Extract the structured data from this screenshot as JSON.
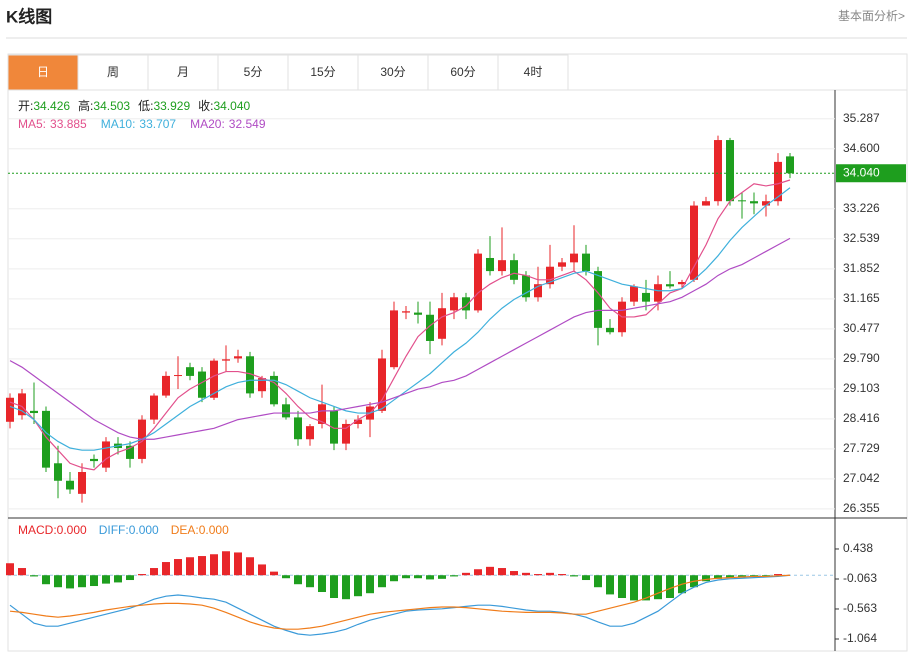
{
  "header": {
    "title": "K线图",
    "link": "基本面分析>"
  },
  "tabs": [
    "日",
    "周",
    "月",
    "5分",
    "15分",
    "30分",
    "60分",
    "4时"
  ],
  "active_tab": 0,
  "chart_data": [
    {
      "type": "candlestick",
      "up_color": "#e8262a",
      "down_color": "#1e9e1e",
      "ylim": [
        26.17,
        35.9
      ],
      "yticks": [
        35.287,
        {
          "value": 34.6,
          "label": "34.600"
        },
        33.226,
        32.539,
        31.852,
        31.165,
        30.477,
        {
          "value": 29.79,
          "label": "29.790"
        },
        29.103,
        28.416,
        27.729,
        27.042,
        26.355
      ],
      "grid": true,
      "last_price": {
        "value": 34.04,
        "label": "34.040"
      },
      "ohlc_readout": [
        {
          "name": "开:",
          "value": 34.426
        },
        {
          "name": "高:",
          "value": 34.503
        },
        {
          "name": "低:",
          "value": 33.929
        },
        {
          "name": "收:",
          "value": 34.04,
          "label": "34.040"
        }
      ],
      "candles": [
        [
          28.35,
          29.0,
          28.2,
          28.9
        ],
        [
          28.5,
          29.1,
          28.4,
          29.0
        ],
        [
          28.6,
          29.25,
          28.3,
          28.55
        ],
        [
          28.6,
          28.7,
          27.2,
          27.3
        ],
        [
          27.4,
          27.8,
          26.6,
          27.0
        ],
        [
          27.0,
          27.2,
          26.7,
          26.8
        ],
        [
          26.7,
          27.4,
          26.5,
          27.2
        ],
        [
          27.5,
          27.6,
          27.3,
          27.45
        ],
        [
          27.3,
          28.0,
          27.2,
          27.9
        ],
        [
          27.85,
          28.0,
          27.6,
          27.75
        ],
        [
          27.8,
          27.9,
          27.3,
          27.5
        ],
        [
          27.5,
          28.5,
          27.4,
          28.4
        ],
        [
          28.4,
          29.0,
          28.3,
          28.95
        ],
        [
          28.95,
          29.5,
          28.9,
          29.4
        ],
        [
          29.4,
          29.85,
          29.1,
          29.42
        ],
        [
          29.6,
          29.7,
          29.3,
          29.4
        ],
        [
          29.5,
          29.6,
          28.8,
          28.9
        ],
        [
          28.9,
          29.8,
          28.85,
          29.75
        ],
        [
          29.75,
          30.1,
          29.5,
          29.78
        ],
        [
          29.8,
          30.0,
          29.7,
          29.85
        ],
        [
          29.85,
          29.95,
          28.9,
          29.0
        ],
        [
          29.05,
          29.4,
          28.9,
          29.35
        ],
        [
          29.4,
          29.5,
          28.7,
          28.75
        ],
        [
          28.75,
          28.9,
          28.4,
          28.45
        ],
        [
          28.45,
          28.6,
          27.8,
          27.95
        ],
        [
          27.95,
          28.3,
          27.8,
          28.25
        ],
        [
          28.3,
          29.2,
          28.2,
          28.75
        ],
        [
          28.6,
          28.7,
          27.7,
          27.85
        ],
        [
          27.85,
          28.4,
          27.7,
          28.3
        ],
        [
          28.3,
          28.5,
          28.2,
          28.4
        ],
        [
          28.4,
          28.8,
          28.0,
          28.7
        ],
        [
          28.6,
          30.0,
          28.55,
          29.8
        ],
        [
          29.6,
          31.1,
          29.55,
          30.9
        ],
        [
          30.85,
          31.0,
          30.7,
          30.88
        ],
        [
          30.85,
          31.1,
          30.6,
          30.8
        ],
        [
          30.8,
          31.1,
          29.9,
          30.2
        ],
        [
          30.25,
          31.3,
          30.1,
          30.95
        ],
        [
          30.9,
          31.3,
          30.7,
          31.2
        ],
        [
          31.2,
          31.3,
          30.7,
          30.9
        ],
        [
          30.9,
          32.3,
          30.85,
          32.2
        ],
        [
          32.1,
          32.6,
          31.7,
          31.8
        ],
        [
          31.8,
          32.8,
          31.7,
          32.05
        ],
        [
          32.05,
          32.2,
          31.5,
          31.6
        ],
        [
          31.7,
          31.8,
          31.1,
          31.2
        ],
        [
          31.2,
          31.9,
          31.1,
          31.5
        ],
        [
          31.5,
          32.4,
          31.4,
          31.9
        ],
        [
          31.9,
          32.1,
          31.8,
          32.0
        ],
        [
          32.0,
          32.85,
          31.8,
          32.2
        ],
        [
          32.2,
          32.4,
          31.7,
          31.8
        ],
        [
          31.8,
          31.9,
          30.1,
          30.5
        ],
        [
          30.5,
          30.7,
          30.35,
          30.4
        ],
        [
          30.4,
          31.2,
          30.3,
          31.1
        ],
        [
          31.1,
          31.5,
          31.0,
          31.45
        ],
        [
          31.3,
          31.6,
          30.9,
          31.1
        ],
        [
          31.1,
          31.7,
          30.9,
          31.5
        ],
        [
          31.5,
          31.8,
          31.4,
          31.45
        ],
        [
          31.5,
          31.6,
          31.4,
          31.55
        ],
        [
          31.6,
          33.4,
          31.55,
          33.3
        ],
        [
          33.3,
          33.5,
          33.3,
          33.4
        ],
        [
          33.4,
          34.9,
          33.3,
          34.8
        ],
        [
          34.8,
          34.85,
          33.3,
          33.4
        ],
        [
          33.42,
          33.6,
          33.0,
          33.4
        ],
        [
          33.4,
          33.6,
          33.1,
          33.35
        ],
        [
          33.3,
          33.55,
          33.05,
          33.4
        ],
        [
          33.4,
          34.5,
          33.3,
          34.3
        ],
        [
          34.426,
          34.503,
          33.929,
          34.04
        ]
      ],
      "series": [
        {
          "name": "MA5:",
          "color": "#e2508c",
          "values": [
            28.8,
            28.7,
            28.4,
            28.0,
            27.7,
            27.4,
            27.3,
            27.25,
            27.5,
            27.65,
            27.75,
            27.9,
            28.2,
            28.55,
            28.9,
            29.1,
            29.25,
            29.4,
            29.5,
            29.5,
            29.45,
            29.35,
            29.25,
            29.0,
            28.7,
            28.45,
            28.35,
            28.2,
            28.2,
            28.4,
            28.55,
            28.85,
            29.35,
            29.85,
            30.3,
            30.55,
            30.75,
            30.85,
            31.0,
            31.3,
            31.5,
            31.65,
            31.75,
            31.7,
            31.6,
            31.6,
            31.7,
            31.8,
            31.6,
            31.3,
            30.95,
            30.75,
            30.75,
            30.8,
            31.05,
            31.3,
            31.4,
            31.9,
            32.4,
            33.0,
            33.4,
            33.6,
            33.8,
            33.75,
            33.8,
            33.885
          ]
        },
        {
          "name": "MA10:",
          "color": "#3fb0dc",
          "values": [
            28.7,
            28.6,
            28.4,
            28.1,
            27.9,
            27.75,
            27.7,
            27.7,
            27.75,
            27.8,
            27.85,
            27.95,
            28.1,
            28.3,
            28.5,
            28.7,
            28.85,
            29.0,
            29.15,
            29.25,
            29.3,
            29.3,
            29.3,
            29.2,
            29.05,
            28.9,
            28.8,
            28.7,
            28.6,
            28.55,
            28.55,
            28.65,
            28.85,
            29.05,
            29.25,
            29.45,
            29.7,
            29.95,
            30.15,
            30.4,
            30.7,
            30.95,
            31.15,
            31.3,
            31.45,
            31.55,
            31.65,
            31.75,
            31.8,
            31.7,
            31.6,
            31.5,
            31.45,
            31.4,
            31.35,
            31.35,
            31.4,
            31.6,
            31.85,
            32.15,
            32.5,
            32.8,
            33.05,
            33.3,
            33.5,
            33.707
          ]
        },
        {
          "name": "MA20:",
          "color": "#b04cc4",
          "values": [
            29.75,
            29.6,
            29.4,
            29.2,
            29.0,
            28.8,
            28.6,
            28.4,
            28.25,
            28.1,
            28.0,
            27.95,
            27.95,
            28.0,
            28.05,
            28.1,
            28.15,
            28.2,
            28.3,
            28.4,
            28.45,
            28.5,
            28.55,
            28.55,
            28.55,
            28.55,
            28.6,
            28.6,
            28.65,
            28.7,
            28.75,
            28.8,
            28.9,
            29.0,
            29.1,
            29.15,
            29.25,
            29.3,
            29.4,
            29.55,
            29.7,
            29.85,
            30.0,
            30.15,
            30.3,
            30.45,
            30.6,
            30.75,
            30.85,
            30.9,
            30.9,
            30.9,
            30.95,
            31.0,
            31.05,
            31.1,
            31.2,
            31.35,
            31.5,
            31.7,
            31.85,
            31.95,
            32.1,
            32.25,
            32.4,
            32.549
          ]
        }
      ]
    },
    {
      "type": "macd",
      "ylim": [
        -1.264,
        0.938
      ],
      "yticks": [
        0.438,
        -0.063,
        -0.563,
        -1.064
      ],
      "series": [
        {
          "name": "MACD:",
          "type": "bar",
          "color": "#e8262a",
          "down_color": "#1e9e1e",
          "readout": {
            "value": 0,
            "label": "0.000"
          },
          "values": [
            0.2,
            0.12,
            -0.02,
            -0.15,
            -0.2,
            -0.22,
            -0.2,
            -0.18,
            -0.14,
            -0.12,
            -0.08,
            0.02,
            0.12,
            0.22,
            0.27,
            0.3,
            0.32,
            0.35,
            0.4,
            0.38,
            0.3,
            0.18,
            0.06,
            -0.05,
            -0.15,
            -0.2,
            -0.28,
            -0.38,
            -0.4,
            -0.35,
            -0.3,
            -0.2,
            -0.1,
            -0.05,
            -0.05,
            -0.07,
            -0.06,
            -0.02,
            0.04,
            0.1,
            0.14,
            0.12,
            0.07,
            0.04,
            0.02,
            0.04,
            0.02,
            -0.02,
            -0.08,
            -0.2,
            -0.32,
            -0.38,
            -0.42,
            -0.42,
            -0.4,
            -0.38,
            -0.3,
            -0.2,
            -0.1,
            -0.06,
            -0.04,
            -0.03,
            -0.03,
            -0.02,
            0.02,
            0.0
          ]
        },
        {
          "name": "DIFF:",
          "type": "line",
          "color": "#3a9ad9",
          "readout": {
            "value": 0,
            "label": "0.000"
          },
          "values": [
            -0.5,
            -0.65,
            -0.8,
            -0.85,
            -0.85,
            -0.8,
            -0.75,
            -0.7,
            -0.65,
            -0.6,
            -0.55,
            -0.48,
            -0.4,
            -0.35,
            -0.33,
            -0.35,
            -0.38,
            -0.4,
            -0.45,
            -0.55,
            -0.65,
            -0.75,
            -0.85,
            -0.92,
            -0.98,
            -1.0,
            -0.98,
            -0.95,
            -0.9,
            -0.82,
            -0.75,
            -0.7,
            -0.65,
            -0.6,
            -0.58,
            -0.57,
            -0.56,
            -0.54,
            -0.52,
            -0.5,
            -0.5,
            -0.52,
            -0.55,
            -0.58,
            -0.6,
            -0.6,
            -0.62,
            -0.65,
            -0.7,
            -0.78,
            -0.85,
            -0.85,
            -0.8,
            -0.7,
            -0.6,
            -0.45,
            -0.3,
            -0.2,
            -0.12,
            -0.08,
            -0.06,
            -0.05,
            -0.04,
            -0.03,
            -0.02,
            0.0
          ]
        },
        {
          "name": "DEA:",
          "type": "line",
          "color": "#f07c1a",
          "readout": {
            "value": 0,
            "label": "0.000"
          },
          "values": [
            -0.6,
            -0.62,
            -0.65,
            -0.68,
            -0.7,
            -0.68,
            -0.65,
            -0.62,
            -0.58,
            -0.55,
            -0.52,
            -0.5,
            -0.48,
            -0.47,
            -0.47,
            -0.48,
            -0.5,
            -0.55,
            -0.62,
            -0.7,
            -0.78,
            -0.84,
            -0.88,
            -0.9,
            -0.9,
            -0.88,
            -0.85,
            -0.8,
            -0.75,
            -0.7,
            -0.65,
            -0.62,
            -0.6,
            -0.58,
            -0.56,
            -0.54,
            -0.53,
            -0.53,
            -0.54,
            -0.56,
            -0.58,
            -0.6,
            -0.61,
            -0.62,
            -0.62,
            -0.62,
            -0.63,
            -0.65,
            -0.65,
            -0.6,
            -0.55,
            -0.5,
            -0.45,
            -0.38,
            -0.3,
            -0.22,
            -0.15,
            -0.1,
            -0.07,
            -0.05,
            -0.04,
            -0.03,
            -0.02,
            -0.02,
            -0.01,
            0.0
          ]
        }
      ]
    }
  ]
}
